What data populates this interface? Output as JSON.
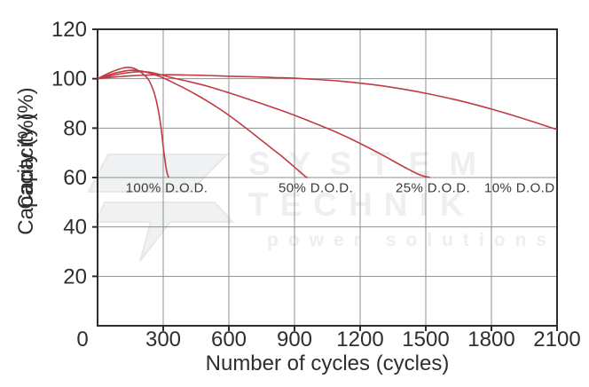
{
  "chart_data": {
    "type": "line",
    "title": "",
    "xlabel": "Number of cycles (cycles)",
    "ylabel": "Capacity (%)",
    "ylabel_drawn_twice_overlapping": true,
    "xlim": [
      0,
      2100
    ],
    "ylim": [
      0,
      120
    ],
    "xticks": [
      0,
      300,
      600,
      900,
      1200,
      1500,
      1800,
      2100
    ],
    "yticks": [
      20,
      40,
      60,
      80,
      100,
      120
    ],
    "grid": true,
    "legend_position": "inline curve labels",
    "series": [
      {
        "name": "100% D.O.D.",
        "points": [
          [
            0,
            100
          ],
          [
            40,
            101.8
          ],
          [
            80,
            103.3
          ],
          [
            120,
            104.4
          ],
          [
            150,
            104.5
          ],
          [
            180,
            103.6
          ],
          [
            210,
            101.8
          ],
          [
            230,
            100
          ],
          [
            245,
            97.5
          ],
          [
            258,
            94.5
          ],
          [
            270,
            90.5
          ],
          [
            281,
            85.5
          ],
          [
            291,
            79.5
          ],
          [
            300,
            72.5
          ],
          [
            308,
            67
          ],
          [
            315,
            63
          ],
          [
            320,
            61.2
          ],
          [
            325,
            60
          ]
        ]
      },
      {
        "name": "50% D.O.D.",
        "points": [
          [
            0,
            100
          ],
          [
            50,
            101.5
          ],
          [
            100,
            102.7
          ],
          [
            150,
            103.4
          ],
          [
            200,
            103.1
          ],
          [
            250,
            101.9
          ],
          [
            300,
            100.3
          ],
          [
            350,
            98.2
          ],
          [
            400,
            96
          ],
          [
            450,
            93.6
          ],
          [
            500,
            91
          ],
          [
            550,
            88.2
          ],
          [
            600,
            85.2
          ],
          [
            650,
            81.9
          ],
          [
            700,
            78.5
          ],
          [
            750,
            75
          ],
          [
            800,
            71.5
          ],
          [
            850,
            68
          ],
          [
            900,
            64.2
          ],
          [
            950,
            60.4
          ],
          [
            960,
            60
          ]
        ]
      },
      {
        "name": "25% D.O.D.",
        "points": [
          [
            0,
            100
          ],
          [
            60,
            101.2
          ],
          [
            120,
            102.2
          ],
          [
            180,
            102.8
          ],
          [
            240,
            102.6
          ],
          [
            300,
            101.3
          ],
          [
            350,
            100.2
          ],
          [
            400,
            99.2
          ],
          [
            500,
            97
          ],
          [
            600,
            94.3
          ],
          [
            700,
            91.4
          ],
          [
            800,
            88.4
          ],
          [
            900,
            85.2
          ],
          [
            1000,
            81.7
          ],
          [
            1100,
            78
          ],
          [
            1200,
            73.8
          ],
          [
            1300,
            69.2
          ],
          [
            1400,
            64.3
          ],
          [
            1470,
            61.2
          ],
          [
            1520,
            60
          ]
        ]
      },
      {
        "name": "10% D.O.D.",
        "points": [
          [
            0,
            100
          ],
          [
            80,
            100.7
          ],
          [
            160,
            101.2
          ],
          [
            240,
            101.5
          ],
          [
            320,
            101.6
          ],
          [
            400,
            101.5
          ],
          [
            500,
            101.3
          ],
          [
            600,
            101
          ],
          [
            700,
            100.8
          ],
          [
            800,
            100.5
          ],
          [
            900,
            100.2
          ],
          [
            1000,
            99.7
          ],
          [
            1100,
            99.1
          ],
          [
            1200,
            98.2
          ],
          [
            1300,
            97.1
          ],
          [
            1400,
            95.7
          ],
          [
            1500,
            94.1
          ],
          [
            1600,
            92.2
          ],
          [
            1700,
            90.1
          ],
          [
            1800,
            87.7
          ],
          [
            1900,
            85.1
          ],
          [
            2000,
            82.3
          ],
          [
            2100,
            79.4
          ]
        ]
      }
    ],
    "annotations": [
      {
        "text": "100% D.O.D.",
        "x": 316,
        "y": 55.5
      },
      {
        "text": "50% D.O.D.",
        "x": 995,
        "y": 55.5
      },
      {
        "text": "25% D.O.D.",
        "x": 1532,
        "y": 55.5
      },
      {
        "text": "10% D.O.D.",
        "x": 1936,
        "y": 55.5
      }
    ]
  },
  "watermark": {
    "line1": "SYSTEM",
    "line2": "TECHNIK",
    "line3": "power solutions"
  },
  "colors": {
    "curve": "#c03b44",
    "grid": "#8f8f8f",
    "frame": "#2d2d2d",
    "text": "#2e2e2e",
    "watermark": "#edeff1",
    "background": "#ffffff"
  }
}
